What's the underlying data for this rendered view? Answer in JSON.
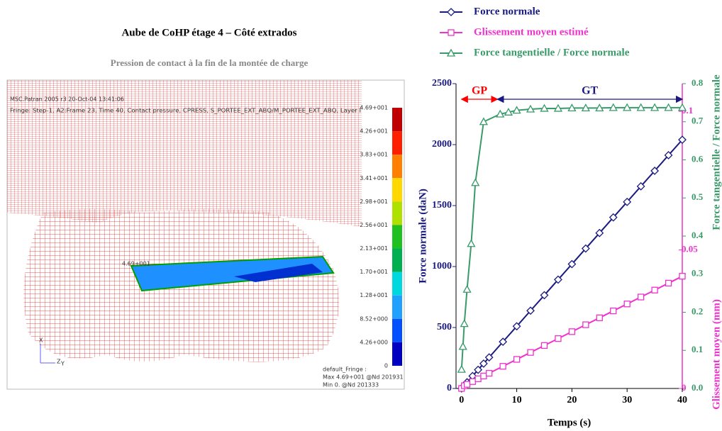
{
  "header": {
    "title": "Aube de CoHP étage 4 – Côté extrados",
    "subtitle": "Pression de contact à la fin de la montée de charge"
  },
  "fem": {
    "software": "MSC.Patran 2005 r3 20-Oct-04 13:41:06",
    "fringe": "Fringe: Step-1, A2:Frame 23, Time 40, Contact pressure, CPRESS, S_PORTEE_EXT_ABQ/M_PORTEE_EXT_ABQ, Layer I",
    "max_label": "4.69+001",
    "colorbar": {
      "labels": [
        "4.69+001",
        "4.26+001",
        "3.83+001",
        "3.41+001",
        "2.98+001",
        "2.56+001",
        "2.13+001",
        "1.70+001",
        "1.28+001",
        "8.52+000",
        "4.26+000",
        "0"
      ],
      "colors": [
        "#c00000",
        "#ff2000",
        "#ff8000",
        "#ffd800",
        "#b0e000",
        "#20c020",
        "#00b050",
        "#00d8e0",
        "#20a0ff",
        "#0050ff",
        "#0000c0"
      ]
    },
    "footer": [
      "default_Fringe :",
      "Max 4.69+001 @Nd 201931",
      "Min 0. @Nd 201333"
    ],
    "axes": [
      "X",
      "Z",
      "Y"
    ]
  },
  "chart_data": {
    "type": "line",
    "xlabel": "Temps (s)",
    "ylabel": "Force normale (daN)",
    "y2label": "Force tangentielle / Force normale",
    "y3label": "Glissement moyen (mm)",
    "xlim": [
      -1,
      40
    ],
    "xticks": [
      0,
      10,
      20,
      30,
      40
    ],
    "ylim": [
      0,
      2500
    ],
    "yticks": [
      0,
      500,
      1000,
      1500,
      2000,
      2500
    ],
    "y2lim": [
      0,
      0.8
    ],
    "y2ticks": [
      {
        "value": 0,
        "label": "0.0"
      },
      0.1,
      0.2,
      0.3,
      0.4,
      0.5,
      0.6,
      0.7,
      0.8
    ],
    "y3lim": [
      0,
      0.11
    ],
    "y3ticks": [
      0,
      0.05,
      0.1
    ],
    "series": [
      {
        "name": "Force normale",
        "color": "#1a1a80",
        "marker": "diamond",
        "axis": "y",
        "x": [
          0,
          0.5,
          1,
          2,
          3,
          4,
          5,
          7.5,
          10,
          12.5,
          15,
          17.5,
          20,
          22.5,
          25,
          27.5,
          30,
          32.5,
          35,
          37.5,
          40
        ],
        "values": [
          0,
          25,
          51,
          102,
          153,
          204,
          255,
          383,
          510,
          638,
          765,
          893,
          1020,
          1148,
          1275,
          1403,
          1530,
          1658,
          1785,
          1913,
          2040
        ]
      },
      {
        "name": "Glissement moyen estimé",
        "color": "#ee33cc",
        "marker": "square",
        "axis": "y3",
        "x": [
          0,
          0.5,
          1,
          2,
          3,
          4,
          5,
          7.5,
          10,
          12.5,
          15,
          17.5,
          20,
          22.5,
          25,
          27.5,
          30,
          32.5,
          35,
          37.5,
          40
        ],
        "values": [
          0,
          0.001,
          0.0015,
          0.0025,
          0.0035,
          0.0045,
          0.0055,
          0.008,
          0.0105,
          0.013,
          0.0155,
          0.018,
          0.0205,
          0.023,
          0.0255,
          0.028,
          0.0305,
          0.033,
          0.0355,
          0.038,
          0.0405
        ]
      },
      {
        "name": "Force tangentielle / Force normale",
        "color": "#3a9a6a",
        "marker": "triangle",
        "axis": "y2",
        "x": [
          0,
          0.25,
          0.5,
          1,
          1.75,
          2.5,
          4,
          7,
          8.5,
          10,
          12.5,
          15,
          17.5,
          20,
          22.5,
          25,
          27.5,
          30,
          32.5,
          35,
          37.5,
          40
        ],
        "values": [
          0.05,
          0.11,
          0.17,
          0.26,
          0.38,
          0.54,
          0.7,
          0.72,
          0.725,
          0.73,
          0.733,
          0.735,
          0.735,
          0.736,
          0.736,
          0.736,
          0.737,
          0.737,
          0.737,
          0.737,
          0.737,
          0.737
        ]
      }
    ],
    "annotations": [
      {
        "text": "GP",
        "color": "#ff0000",
        "from": 0,
        "to": 6.5
      },
      {
        "text": "GT",
        "color": "#1a1a80",
        "from": 6.5,
        "to": 40
      }
    ]
  }
}
